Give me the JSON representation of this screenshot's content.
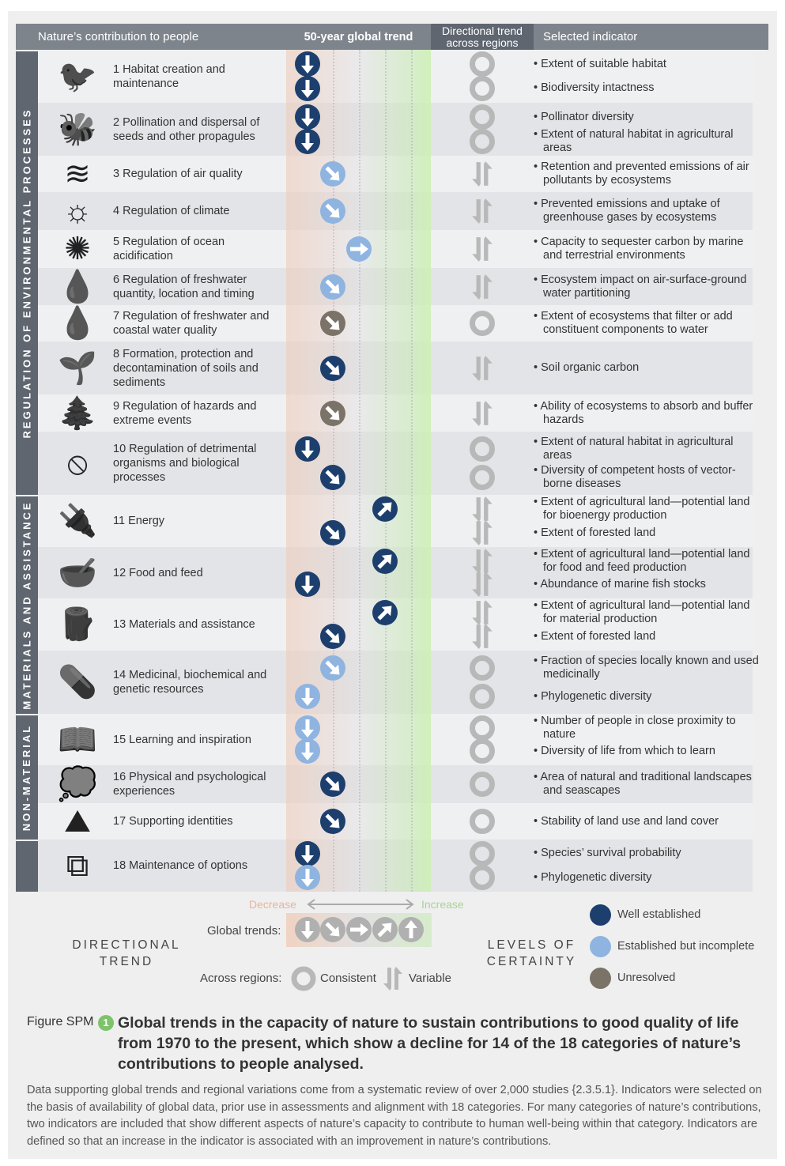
{
  "header": {
    "col1": "Nature’s contribution to people",
    "col2": "50-year global trend",
    "col3": "Directional trend across regions",
    "col4": "Selected indicator"
  },
  "categories": [
    "REGULATION OF ENVIRONMENTAL PROCESSES",
    "MATERIALS AND ASSISTANCE",
    "NON-MATERIAL"
  ],
  "colors": {
    "well_established": "#1d3f6e",
    "established_incomplete": "#8fb4e0",
    "unresolved": "#7b7268",
    "region_marker": "#b8b8b8",
    "header": "#7d848c",
    "accent_green": "#7dc36b"
  },
  "rows": [
    {
      "label": "1 Habitat creation and maintenance",
      "icon": "bird-nest-icon",
      "indicators": [
        {
          "trend": "decrease",
          "certainty": "well",
          "region": "consistent",
          "text": "Extent of suitable habitat"
        },
        {
          "trend": "decrease",
          "certainty": "well",
          "region": "consistent",
          "text": "Biodiversity intactness"
        }
      ]
    },
    {
      "label": "2 Pollination and dispersal of seeds and other propagules",
      "icon": "bee-icon",
      "indicators": [
        {
          "trend": "decrease",
          "certainty": "well",
          "region": "consistent",
          "text": "Pollinator diversity"
        },
        {
          "trend": "decrease",
          "certainty": "well",
          "region": "consistent",
          "text": "Extent of natural habitat in agricultural areas"
        }
      ]
    },
    {
      "label": "3 Regulation of air quality",
      "icon": "wind-icon",
      "indicators": [
        {
          "trend": "slight-decrease",
          "certainty": "incomplete",
          "region": "variable",
          "text": "Retention and prevented emissions of air pollutants by ecosystems"
        }
      ]
    },
    {
      "label": "4 Regulation of climate",
      "icon": "sun-cloud-icon",
      "indicators": [
        {
          "trend": "slight-decrease",
          "certainty": "incomplete",
          "region": "variable",
          "text": "Prevented emissions and uptake of greenhouse gases by ecosystems"
        }
      ]
    },
    {
      "label": "5 Regulation of ocean acidification",
      "icon": "plankton-icon",
      "indicators": [
        {
          "trend": "neutral",
          "certainty": "incomplete",
          "region": "variable",
          "text": "Capacity to sequester carbon by marine and terrestrial environments"
        }
      ]
    },
    {
      "label": "6 Regulation of freshwater quantity, location and timing",
      "icon": "water-drops-icon",
      "indicators": [
        {
          "trend": "slight-decrease",
          "certainty": "incomplete",
          "region": "variable",
          "text": "Ecosystem impact on air-surface-ground water partitioning"
        }
      ]
    },
    {
      "label": "7 Regulation of freshwater and coastal water quality",
      "icon": "water-drop-icon",
      "indicators": [
        {
          "trend": "slight-decrease",
          "certainty": "unresolved",
          "region": "consistent",
          "text": "Extent of ecosystems that filter or add constituent components to water"
        }
      ]
    },
    {
      "label": "8 Formation, protection and decontamination of soils and sediments",
      "icon": "soil-sprout-icon",
      "indicators": [
        {
          "trend": "slight-decrease",
          "certainty": "well",
          "region": "variable",
          "text": "Soil organic carbon"
        }
      ]
    },
    {
      "label": "9 Regulation of hazards and extreme events",
      "icon": "forest-fire-icon",
      "indicators": [
        {
          "trend": "slight-decrease",
          "certainty": "unresolved",
          "region": "variable",
          "text": "Ability of ecosystems to absorb and buffer hazards"
        }
      ]
    },
    {
      "label": "10 Regulation of detrimental organisms and biological processes",
      "icon": "no-mosquito-icon",
      "indicators": [
        {
          "trend": "decrease",
          "certainty": "well",
          "region": "consistent",
          "text": "Extent of natural habitat in agricultural areas"
        },
        {
          "trend": "slight-decrease",
          "certainty": "well",
          "region": "consistent",
          "text": "Diversity of competent hosts of vector-borne diseases"
        }
      ]
    },
    {
      "label": "11 Energy",
      "icon": "plug-icon",
      "indicators": [
        {
          "trend": "slight-increase",
          "certainty": "well",
          "region": "variable",
          "text": "Extent of agricultural land—potential land for bioenergy production"
        },
        {
          "trend": "slight-decrease",
          "certainty": "well",
          "region": "variable",
          "text": "Extent of forested land"
        }
      ]
    },
    {
      "label": "12 Food and feed",
      "icon": "food-bowl-icon",
      "indicators": [
        {
          "trend": "slight-increase",
          "certainty": "well",
          "region": "variable",
          "text": "Extent of agricultural land—potential land for food and feed production"
        },
        {
          "trend": "decrease",
          "certainty": "well",
          "region": "variable",
          "text": "Abundance of marine fish stocks"
        }
      ]
    },
    {
      "label": "13 Materials and assistance",
      "icon": "logs-icon",
      "indicators": [
        {
          "trend": "slight-increase",
          "certainty": "well",
          "region": "variable",
          "text": "Extent of agricultural land—potential land for material production"
        },
        {
          "trend": "slight-decrease",
          "certainty": "well",
          "region": "variable",
          "text": "Extent of forested land"
        }
      ]
    },
    {
      "label": "14 Medicinal, biochemical and genetic resources",
      "icon": "medicine-icon",
      "indicators": [
        {
          "trend": "slight-decrease",
          "certainty": "incomplete",
          "region": "consistent",
          "text": "Fraction of species locally known and used medicinally"
        },
        {
          "trend": "decrease",
          "certainty": "incomplete",
          "region": "consistent",
          "text": "Phylogenetic diversity"
        }
      ]
    },
    {
      "label": "15 Learning and inspiration",
      "icon": "book-icon",
      "indicators": [
        {
          "trend": "decrease",
          "certainty": "incomplete",
          "region": "consistent",
          "text": "Number of people in close proximity to nature"
        },
        {
          "trend": "decrease",
          "certainty": "incomplete",
          "region": "consistent",
          "text": "Diversity of life from which to learn"
        }
      ]
    },
    {
      "label": "16 Physical and psychological experiences",
      "icon": "head-thought-icon",
      "indicators": [
        {
          "trend": "slight-decrease",
          "certainty": "well",
          "region": "consistent",
          "text": "Area of natural and traditional landscapes and seascapes"
        }
      ]
    },
    {
      "label": "17 Supporting identities",
      "icon": "landscape-icon",
      "indicators": [
        {
          "trend": "slight-decrease",
          "certainty": "well",
          "region": "consistent",
          "text": "Stability of land use and land cover"
        }
      ]
    },
    {
      "label": "18 Maintenance of options",
      "icon": "hierarchy-icon",
      "indicators": [
        {
          "trend": "decrease",
          "certainty": "well",
          "region": "consistent",
          "text": "Species’ survival probability"
        },
        {
          "trend": "decrease",
          "certainty": "incomplete",
          "region": "consistent",
          "text": "Phylogenetic diversity"
        }
      ]
    }
  ],
  "legend": {
    "decrease": "Decrease",
    "increase": "Increase",
    "global_trends": "Global trends:",
    "directional_trend": "DIRECTIONAL TREND",
    "across_regions": "Across regions:",
    "consistent": "Consistent",
    "variable": "Variable",
    "levels_of_certainty": "LEVELS OF CERTAINTY",
    "well": "Well established",
    "incomplete": "Established but incomplete",
    "unresolved": "Unresolved"
  },
  "caption": {
    "figure": "Figure SPM",
    "number": "1",
    "title": "Global trends in the capacity of nature to sustain contributions to good quality of life from 1970 to the present, which show a decline for 14 of the 18 categories of nature’s contributions to people analysed.",
    "body": "Data supporting global trends and regional variations come from a systematic review of over 2,000 studies {2.3.5.1}. Indicators were selected on the basis of availability of global data, prior use in assessments and alignment with 18 categories. For many categories of nature’s contributions, two indicators are included that show different aspects of nature’s capacity to contribute to human well-being within that category. Indicators are defined so that an increase in the indicator is associated with an improvement in nature’s contributions."
  }
}
